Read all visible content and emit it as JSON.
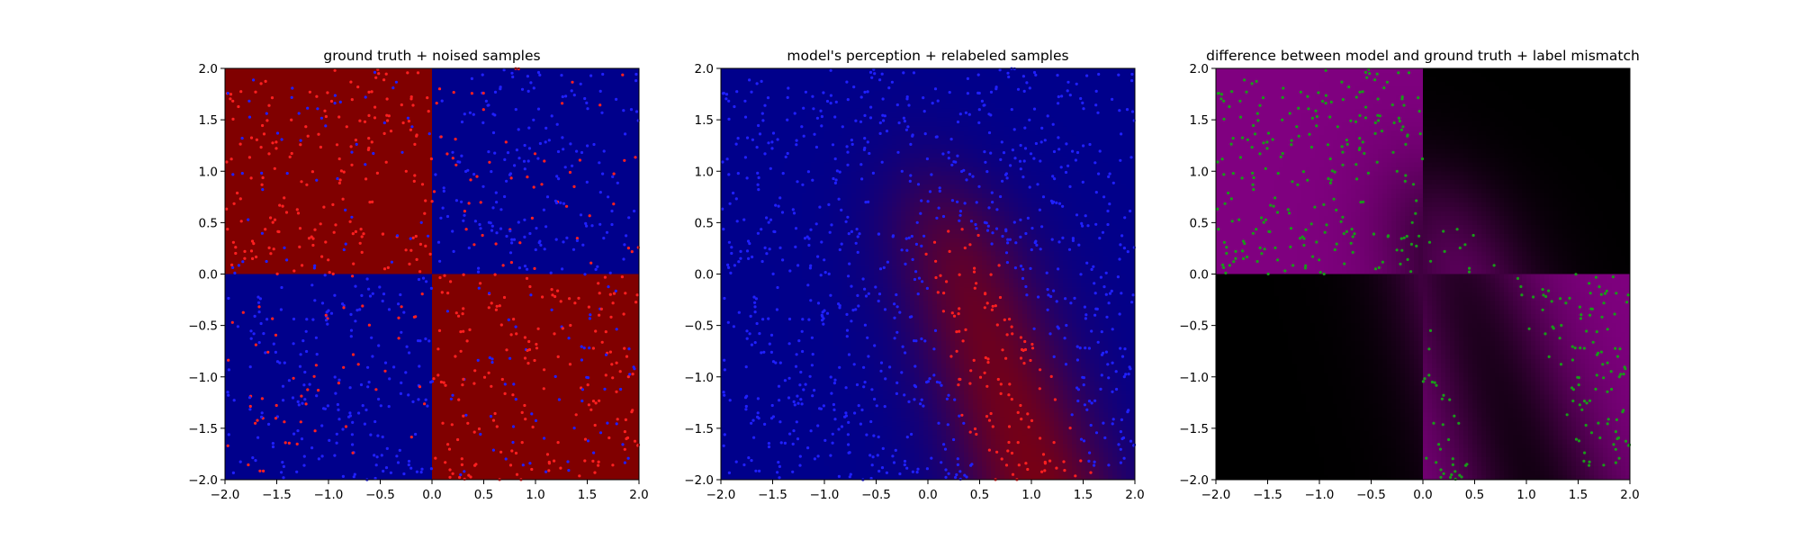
{
  "chart_data": [
    {
      "type": "heatmap",
      "title": "ground truth + noised samples",
      "xlim": [
        -2.0,
        2.0
      ],
      "ylim": [
        -2.0,
        2.0
      ],
      "xticks": [
        "−2.0",
        "−1.5",
        "−1.0",
        "−0.5",
        "0.0",
        "0.5",
        "1.0",
        "1.5",
        "2.0"
      ],
      "yticks": [
        "−2.0",
        "−1.5",
        "−1.0",
        "−0.5",
        "0.0",
        "0.5",
        "1.0",
        "1.5",
        "2.0"
      ],
      "background": "checkerboard quadrants: red where x*y < 0, blue where x*y > 0",
      "colors": {
        "red_region": "#800000",
        "blue_region": "#00008b",
        "red_points": "#ff2020",
        "blue_points": "#2020ff"
      },
      "scatter": {
        "description": "about 1000 noisy samples uniform in [-2,2]x[-2,2], colored by noised label",
        "sample_count_estimate": 1000
      }
    },
    {
      "type": "heatmap",
      "title": "model's perception + relabeled samples",
      "xlim": [
        -2.0,
        2.0
      ],
      "ylim": [
        -2.0,
        2.0
      ],
      "xticks": [
        "−2.0",
        "−1.5",
        "−1.0",
        "−0.5",
        "0.0",
        "0.5",
        "1.0",
        "1.5",
        "2.0"
      ],
      "yticks": [
        "−2.0",
        "−1.5",
        "−1.0",
        "−0.5",
        "0.0",
        "0.5",
        "1.0",
        "1.5",
        "2.0"
      ],
      "background": "smooth model prediction: blue surround, reddish wedge centred around x≈0 to 0.5 extending downward",
      "colors": {
        "red_region": "#8b0000",
        "blue_region": "#00008b",
        "red_points": "#ff2020",
        "blue_points": "#2020ff"
      },
      "scatter": {
        "description": "same samples relabeled by model: red in central/lower-center region, blue on left and elsewhere",
        "sample_count_estimate": 1000
      }
    },
    {
      "type": "heatmap",
      "title": "difference between model and ground truth + label mismatch",
      "xlim": [
        -2.0,
        2.0
      ],
      "ylim": [
        -2.0,
        2.0
      ],
      "xticks": [
        "−2.0",
        "−1.5",
        "−1.0",
        "−0.5",
        "0.0",
        "0.5",
        "1.0",
        "1.5",
        "2.0"
      ],
      "yticks": [
        "−2.0",
        "−1.5",
        "−1.0",
        "−0.5",
        "0.0",
        "0.5",
        "1.0",
        "1.5",
        "2.0"
      ],
      "background": "purple where model disagrees with ground truth, black where it agrees",
      "colors": {
        "mismatch": "#800080",
        "match": "#000000",
        "points": "#1a9a1a"
      },
      "scatter": {
        "description": "green points mark samples whose labels mismatch",
        "sample_count_estimate": 500
      }
    }
  ]
}
